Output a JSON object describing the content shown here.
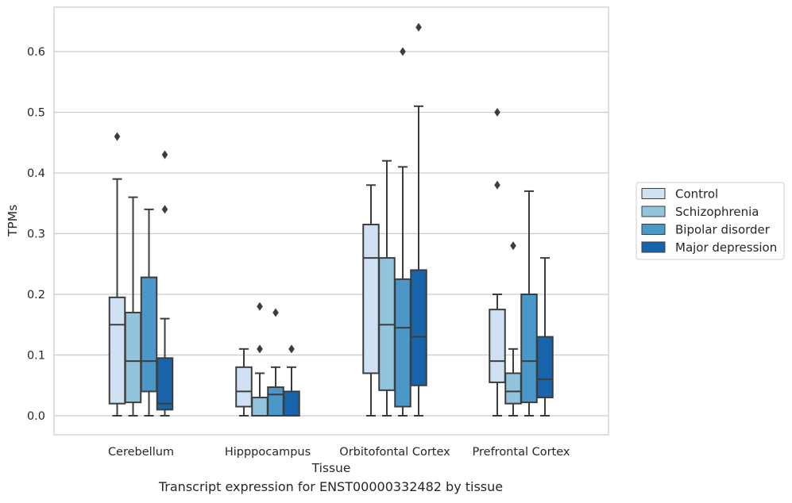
{
  "caption": "Transcript expression for ENST00000332482 by tissue",
  "chart_data": {
    "type": "box",
    "xlabel": "Tissue",
    "ylabel": "TPMs",
    "ylim": [
      -0.03,
      0.675
    ],
    "yticks": [
      "0.0",
      "0.1",
      "0.2",
      "0.3",
      "0.4",
      "0.5",
      "0.6"
    ],
    "grid": true,
    "legend_position": "right",
    "categories": [
      "Cerebellum",
      "Hipppocampus",
      "Orbitofontal Cortex",
      "Prefrontal Cortex"
    ],
    "series": [
      {
        "name": "Control",
        "color": "#cfe1f2",
        "boxes": [
          {
            "whisker_low": 0.0,
            "q1": 0.02,
            "median": 0.15,
            "q3": 0.195,
            "whisker_high": 0.39,
            "outliers": [
              0.46
            ]
          },
          {
            "whisker_low": 0.0,
            "q1": 0.015,
            "median": 0.04,
            "q3": 0.08,
            "whisker_high": 0.11,
            "outliers": []
          },
          {
            "whisker_low": 0.0,
            "q1": 0.07,
            "median": 0.26,
            "q3": 0.315,
            "whisker_high": 0.38,
            "outliers": []
          },
          {
            "whisker_low": 0.0,
            "q1": 0.055,
            "median": 0.09,
            "q3": 0.175,
            "whisker_high": 0.2,
            "outliers": [
              0.38,
              0.5
            ]
          }
        ]
      },
      {
        "name": "Schizophrenia",
        "color": "#93c4de",
        "boxes": [
          {
            "whisker_low": 0.0,
            "q1": 0.022,
            "median": 0.09,
            "q3": 0.17,
            "whisker_high": 0.36,
            "outliers": []
          },
          {
            "whisker_low": 0.0,
            "q1": 0.0,
            "median": 0.0,
            "q3": 0.03,
            "whisker_high": 0.07,
            "outliers": [
              0.11,
              0.18
            ]
          },
          {
            "whisker_low": 0.0,
            "q1": 0.042,
            "median": 0.15,
            "q3": 0.26,
            "whisker_high": 0.42,
            "outliers": []
          },
          {
            "whisker_low": 0.0,
            "q1": 0.02,
            "median": 0.04,
            "q3": 0.07,
            "whisker_high": 0.11,
            "outliers": [
              0.28
            ]
          }
        ]
      },
      {
        "name": "Bipolar disorder",
        "color": "#4a98c9",
        "boxes": [
          {
            "whisker_low": 0.0,
            "q1": 0.04,
            "median": 0.09,
            "q3": 0.228,
            "whisker_high": 0.34,
            "outliers": []
          },
          {
            "whisker_low": 0.0,
            "q1": 0.0,
            "median": 0.035,
            "q3": 0.047,
            "whisker_high": 0.08,
            "outliers": [
              0.17
            ]
          },
          {
            "whisker_low": 0.0,
            "q1": 0.015,
            "median": 0.145,
            "q3": 0.225,
            "whisker_high": 0.41,
            "outliers": [
              0.6
            ]
          },
          {
            "whisker_low": 0.0,
            "q1": 0.022,
            "median": 0.09,
            "q3": 0.2,
            "whisker_high": 0.37,
            "outliers": []
          }
        ]
      },
      {
        "name": "Major depression",
        "color": "#1764ab",
        "boxes": [
          {
            "whisker_low": 0.0,
            "q1": 0.01,
            "median": 0.02,
            "q3": 0.095,
            "whisker_high": 0.16,
            "outliers": [
              0.34,
              0.43
            ]
          },
          {
            "whisker_low": 0.0,
            "q1": 0.0,
            "median": 0.0,
            "q3": 0.04,
            "whisker_high": 0.08,
            "outliers": [
              0.11
            ]
          },
          {
            "whisker_low": 0.0,
            "q1": 0.05,
            "median": 0.13,
            "q3": 0.24,
            "whisker_high": 0.51,
            "outliers": [
              0.64
            ]
          },
          {
            "whisker_low": 0.0,
            "q1": 0.03,
            "median": 0.06,
            "q3": 0.13,
            "whisker_high": 0.26,
            "outliers": []
          }
        ]
      }
    ],
    "colors": {
      "grid": "#cccccc",
      "box_edge": "#3d3d3d",
      "frame": "#cccccc"
    }
  }
}
